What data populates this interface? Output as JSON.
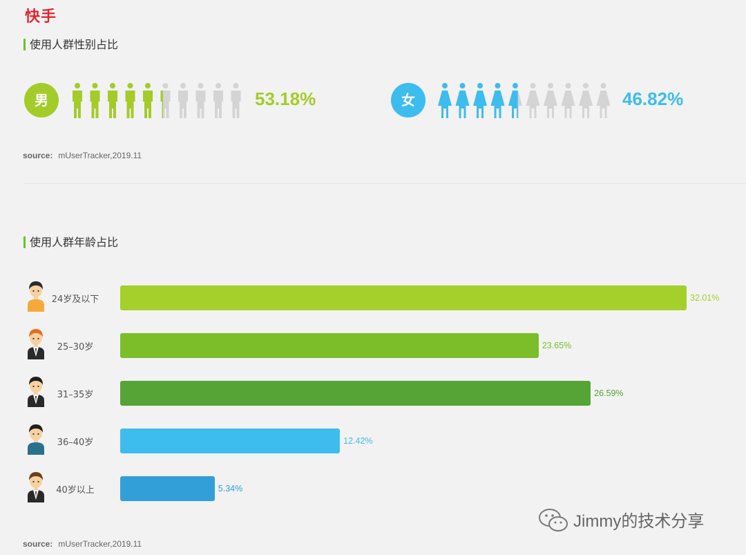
{
  "brand": "快手",
  "gender": {
    "title": "使用人群性别占比",
    "male": {
      "label": "男",
      "percent_text": "53.18%",
      "fraction": 0.5318,
      "color": "#a3cc28"
    },
    "female": {
      "label": "女",
      "percent_text": "46.82%",
      "fraction": 0.4682,
      "color": "#3dbcee"
    },
    "inactive_color": "#d4d4d4",
    "source_label": "source:",
    "source_text": "mUserTracker,2019.11"
  },
  "age": {
    "title": "使用人群年龄占比",
    "source_label": "source:",
    "source_text": "mUserTracker,2019.11"
  },
  "chart_data": {
    "type": "bar",
    "orientation": "horizontal",
    "title": "使用人群年龄占比",
    "categories": [
      "24岁及以下",
      "25–30岁",
      "31–35岁",
      "36–40岁",
      "40岁以上"
    ],
    "values": [
      32.01,
      23.65,
      26.59,
      12.42,
      5.34
    ],
    "value_labels": [
      "32.01%",
      "23.65%",
      "26.59%",
      "12.42%",
      "5.34%"
    ],
    "colors": [
      "#a5cf2a",
      "#7cbd2a",
      "#55a435",
      "#3dbcee",
      "#339fd9"
    ],
    "xlim": [
      0,
      32.01
    ],
    "grid": false,
    "legend": "none"
  },
  "watermark": "Jimmy的技术分享"
}
